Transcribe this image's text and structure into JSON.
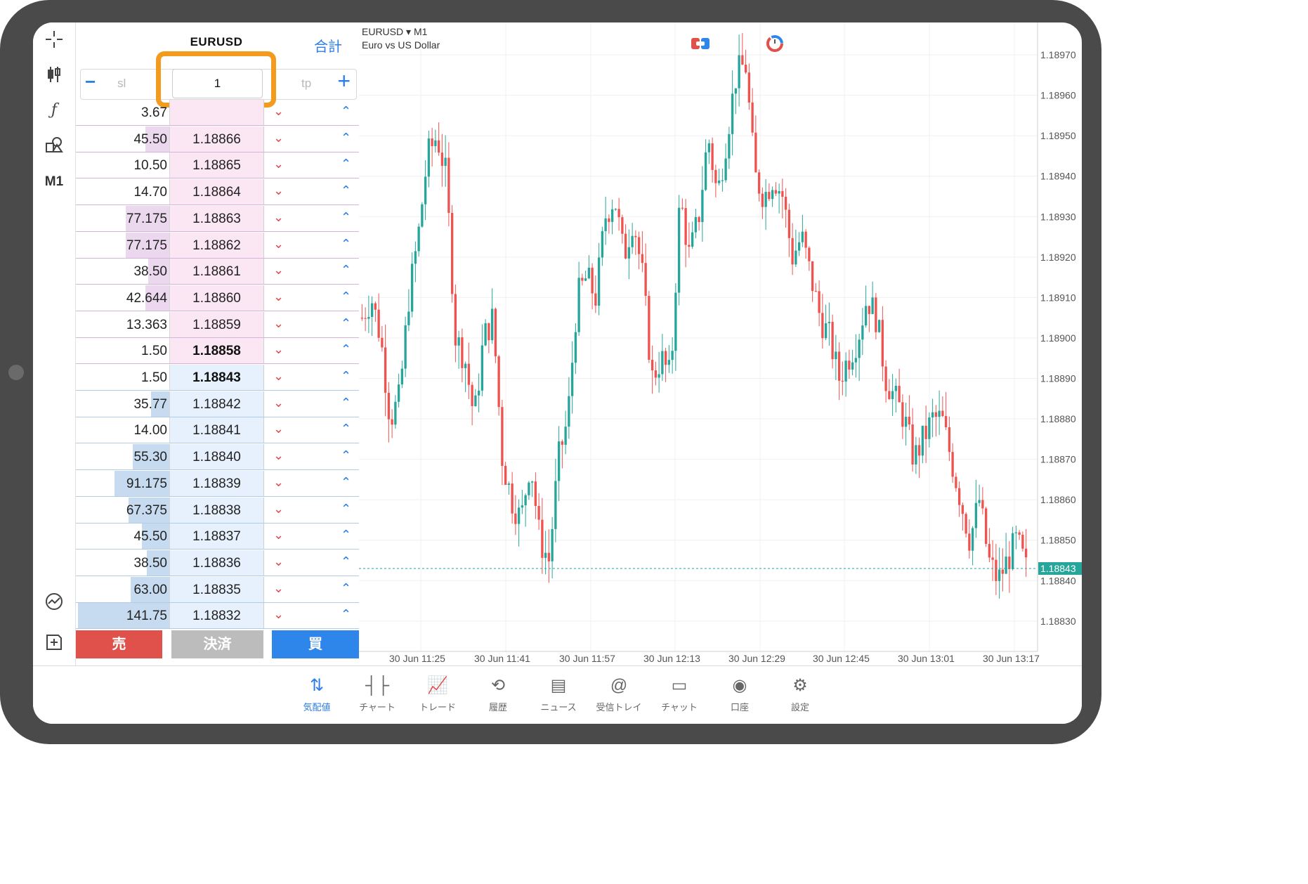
{
  "dom": {
    "symbol": "EURUSD",
    "total_label": "合計",
    "sl_placeholder": "sl",
    "tp_placeholder": "tp",
    "volume": "1",
    "rows": [
      {
        "vol": "3.67",
        "price": "",
        "side": "sell",
        "depth": 0.0
      },
      {
        "vol": "45.50",
        "price": "1.18866",
        "side": "sell",
        "depth": 0.26
      },
      {
        "vol": "10.50",
        "price": "1.18865",
        "side": "sell",
        "depth": 0.0
      },
      {
        "vol": "14.70",
        "price": "1.18864",
        "side": "sell",
        "depth": 0.0
      },
      {
        "vol": "77.175",
        "price": "1.18863",
        "side": "sell",
        "depth": 0.48
      },
      {
        "vol": "77.175",
        "price": "1.18862",
        "side": "sell",
        "depth": 0.48
      },
      {
        "vol": "38.50",
        "price": "1.18861",
        "side": "sell",
        "depth": 0.23
      },
      {
        "vol": "42.644",
        "price": "1.18860",
        "side": "sell",
        "depth": 0.26
      },
      {
        "vol": "13.363",
        "price": "1.18859",
        "side": "sell",
        "depth": 0.0
      },
      {
        "vol": "1.50",
        "price": "1.18858",
        "side": "sell",
        "depth": 0.0,
        "bold": true
      },
      {
        "vol": "1.50",
        "price": "1.18843",
        "side": "buy",
        "depth": 0.0,
        "bold": true
      },
      {
        "vol": "35.77",
        "price": "1.18842",
        "side": "buy",
        "depth": 0.2
      },
      {
        "vol": "14.00",
        "price": "1.18841",
        "side": "buy",
        "depth": 0.0
      },
      {
        "vol": "55.30",
        "price": "1.18840",
        "side": "buy",
        "depth": 0.4
      },
      {
        "vol": "91.175",
        "price": "1.18839",
        "side": "buy",
        "depth": 0.6
      },
      {
        "vol": "67.375",
        "price": "1.18838",
        "side": "buy",
        "depth": 0.45
      },
      {
        "vol": "45.50",
        "price": "1.18837",
        "side": "buy",
        "depth": 0.3
      },
      {
        "vol": "38.50",
        "price": "1.18836",
        "side": "buy",
        "depth": 0.25
      },
      {
        "vol": "63.00",
        "price": "1.18835",
        "side": "buy",
        "depth": 0.42
      },
      {
        "vol": "141.75",
        "price": "1.18832",
        "side": "buy",
        "depth": 1.0
      }
    ],
    "actions": {
      "sell": "売",
      "close": "決済",
      "buy": "買"
    }
  },
  "toolbar": {
    "timeframe": "M1"
  },
  "chart_header": {
    "symbol": "EURUSD",
    "timeframe": "M1",
    "description": "Euro vs US Dollar"
  },
  "chart_data": {
    "type": "candlestick",
    "symbol": "EURUSD",
    "timeframe": "M1",
    "ylim": [
      1.18825,
      1.18975
    ],
    "yticks": [
      "1.18970",
      "1.18960",
      "1.18950",
      "1.18940",
      "1.18930",
      "1.18920",
      "1.18910",
      "1.18900",
      "1.18890",
      "1.18880",
      "1.18870",
      "1.18860",
      "1.18850",
      "1.18840",
      "1.18830"
    ],
    "xticks": [
      "30 Jun 11:25",
      "30 Jun 11:41",
      "30 Jun 11:57",
      "30 Jun 12:13",
      "30 Jun 12:29",
      "30 Jun 12:45",
      "30 Jun 13:01",
      "30 Jun 13:17"
    ],
    "current_price": "1.18843",
    "bull_color": "#26a69a",
    "bear_color": "#ef5350",
    "close_path": [
      1.18905,
      1.1891,
      1.189,
      1.1888,
      1.18885,
      1.1891,
      1.18925,
      1.18945,
      1.1895,
      1.1894,
      1.189,
      1.18895,
      1.1888,
      1.189,
      1.18905,
      1.1887,
      1.1886,
      1.18855,
      1.1887,
      1.1885,
      1.18845,
      1.1887,
      1.1888,
      1.1891,
      1.18915,
      1.1891,
      1.1893,
      1.18935,
      1.1892,
      1.1893,
      1.18915,
      1.1889,
      1.18895,
      1.1889,
      1.18935,
      1.1892,
      1.1893,
      1.1895,
      1.18935,
      1.1895,
      1.18965,
      1.18968,
      1.1894,
      1.18935,
      1.1894,
      1.18935,
      1.1892,
      1.18925,
      1.18915,
      1.18905,
      1.189,
      1.1889,
      1.18895,
      1.189,
      1.1891,
      1.18905,
      1.1889,
      1.18885,
      1.1888,
      1.1887,
      1.18875,
      1.1888,
      1.1888,
      1.1887,
      1.1886,
      1.1885,
      1.1886,
      1.18845,
      1.1884,
      1.18845,
      1.1885,
      1.18843
    ]
  },
  "bottom_nav": [
    {
      "label": "気配値",
      "icon": "quotes-icon",
      "active": true
    },
    {
      "label": "チャート",
      "icon": "chart-icon",
      "active": false
    },
    {
      "label": "トレード",
      "icon": "trade-icon",
      "active": false
    },
    {
      "label": "履歴",
      "icon": "history-icon",
      "active": false
    },
    {
      "label": "ニュース",
      "icon": "news-icon",
      "active": false
    },
    {
      "label": "受信トレイ",
      "icon": "mailbox-icon",
      "active": false
    },
    {
      "label": "チャット",
      "icon": "chat-icon",
      "active": false
    },
    {
      "label": "口座",
      "icon": "account-icon",
      "active": false
    },
    {
      "label": "設定",
      "icon": "settings-icon",
      "active": false
    }
  ]
}
